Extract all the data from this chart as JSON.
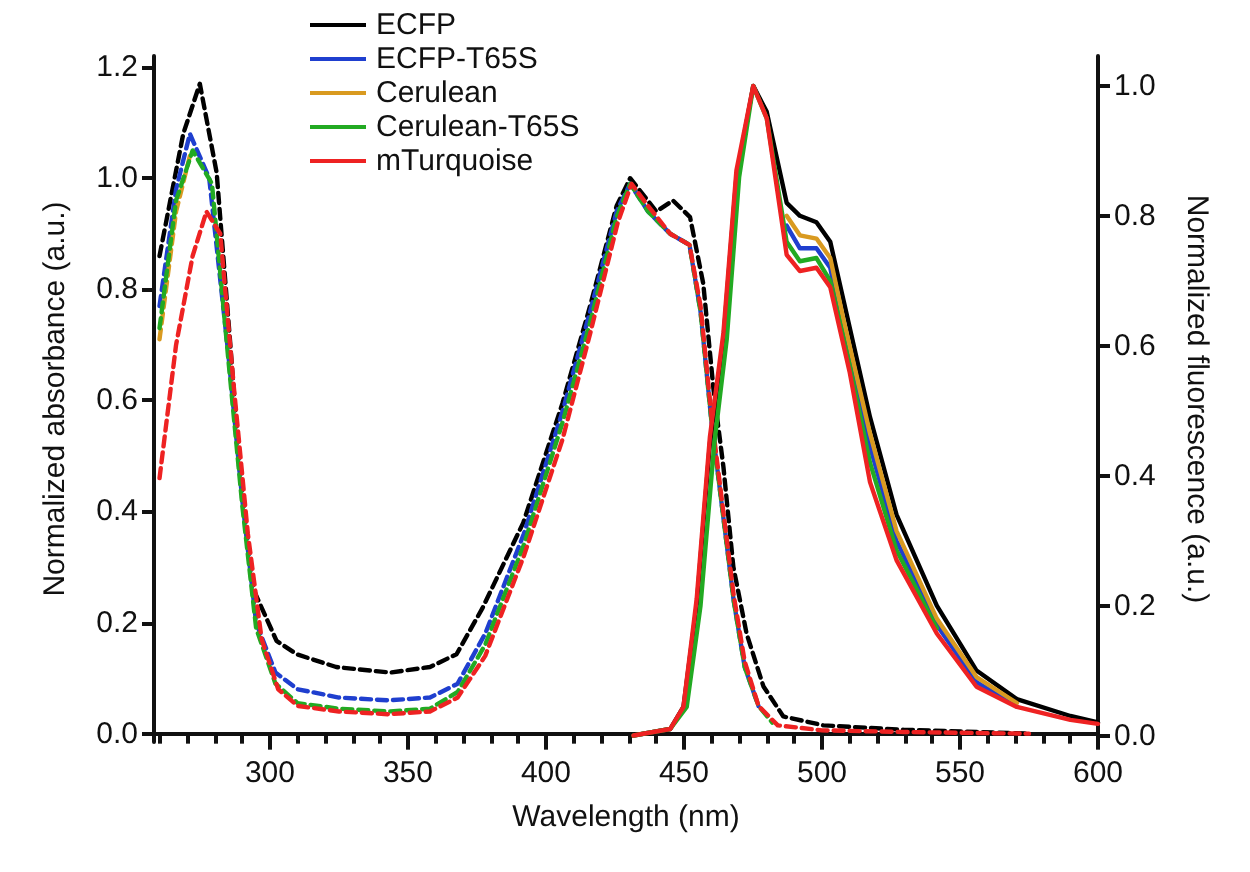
{
  "chart_data": {
    "type": "line",
    "xlabel": "Wavelength (nm)",
    "ylabel": "Normalized absorbance (a.u.)",
    "y2label": "Normalized fluorescence (a.u.)",
    "legend": "top left",
    "marker": "none",
    "grid": false,
    "xlim": [
      258,
      600
    ],
    "xticks": [
      300,
      350,
      400,
      450,
      500,
      550,
      600
    ],
    "ylim": [
      -0.015,
      1.22
    ],
    "yticks": [
      {
        "value": 0,
        "label": "0.0"
      },
      {
        "value": 0.2,
        "label": "0.2"
      },
      {
        "value": 0.4,
        "label": "0.4"
      },
      {
        "value": 0.6,
        "label": "0.6"
      },
      {
        "value": 0.8,
        "label": "0.8"
      },
      {
        "value": 1,
        "label": "1.0"
      },
      {
        "value": 1.2,
        "label": "1.2"
      }
    ],
    "y2lim": [
      -0.01,
      1.046
    ],
    "y2ticks": [
      {
        "value": 0,
        "label": "0.0"
      },
      {
        "value": 0.2,
        "label": "0.2"
      },
      {
        "value": 0.4,
        "label": "0.4"
      },
      {
        "value": 0.6,
        "label": "0.6"
      },
      {
        "value": 0.8,
        "label": "0.8"
      },
      {
        "value": 1,
        "label": "1.0"
      }
    ],
    "series": [
      {
        "color": "#000000",
        "axis": "y",
        "line_style": "dashed",
        "x": [
          260,
          268.6,
          274.6,
          280.7,
          285.5,
          289,
          294,
          302.4,
          309.7,
          324,
          343.5,
          358,
          367.6,
          377,
          391.8,
          406,
          416,
          425.6,
          430.5,
          440,
          446,
          452.2,
          457,
          460.7,
          464.3,
          467.9,
          472.7,
          478.8,
          486,
          500.5,
          529.5,
          575.4
        ],
        "values": [
          0.86,
          1.08,
          1.17,
          1.01,
          0.71,
          0.48,
          0.26,
          0.167,
          0.143,
          0.12,
          0.11,
          0.12,
          0.143,
          0.226,
          0.38,
          0.595,
          0.77,
          0.95,
          1.0,
          0.94,
          0.96,
          0.93,
          0.81,
          0.62,
          0.48,
          0.3,
          0.18,
          0.085,
          0.031,
          0.015,
          0.007,
          0.0
        ]
      },
      {
        "color": "#1f3fcf",
        "axis": "y",
        "line_style": "dashed",
        "x": [
          260,
          266,
          271,
          278,
          285,
          290,
          295,
          302,
          310,
          325,
          343,
          358,
          368,
          378,
          392,
          406,
          416,
          425.6,
          430.5,
          437,
          445,
          452,
          456,
          460,
          464,
          468,
          472,
          477
        ],
        "values": [
          0.77,
          0.98,
          1.08,
          1.0,
          0.68,
          0.42,
          0.2,
          0.11,
          0.08,
          0.065,
          0.06,
          0.065,
          0.09,
          0.18,
          0.36,
          0.58,
          0.76,
          0.94,
          0.99,
          0.94,
          0.9,
          0.88,
          0.76,
          0.56,
          0.4,
          0.24,
          0.12,
          0.05
        ]
      },
      {
        "color": "#d99a20",
        "axis": "y",
        "line_style": "dashed",
        "x": [
          260,
          266,
          271
        ],
        "values": [
          0.71,
          0.94,
          1.04
        ]
      },
      {
        "color": "#22aa22",
        "axis": "y",
        "line_style": "dashed",
        "x": [
          260,
          266,
          272,
          279,
          285,
          290,
          295,
          302,
          310,
          325,
          343,
          358,
          368,
          378,
          392,
          406,
          416,
          425.6,
          430.5,
          437,
          445,
          452,
          456,
          460,
          464,
          468,
          472,
          477,
          482
        ],
        "values": [
          0.73,
          0.96,
          1.05,
          0.99,
          0.67,
          0.41,
          0.19,
          0.09,
          0.055,
          0.045,
          0.04,
          0.045,
          0.075,
          0.16,
          0.34,
          0.56,
          0.74,
          0.93,
          0.99,
          0.94,
          0.9,
          0.88,
          0.76,
          0.56,
          0.4,
          0.24,
          0.12,
          0.05,
          0.02
        ]
      },
      {
        "color": "#ee2222",
        "axis": "y",
        "line_style": "dashed",
        "x": [
          260,
          266,
          272,
          277,
          282,
          287,
          292,
          297,
          303,
          310,
          325,
          343,
          358,
          368,
          378,
          392,
          406,
          416,
          426,
          431,
          437,
          445,
          452,
          456,
          460,
          464,
          468,
          472,
          477,
          484,
          500,
          530,
          575
        ],
        "values": [
          0.46,
          0.7,
          0.86,
          0.94,
          0.9,
          0.62,
          0.36,
          0.17,
          0.08,
          0.05,
          0.04,
          0.035,
          0.04,
          0.065,
          0.14,
          0.32,
          0.53,
          0.72,
          0.92,
          0.99,
          0.95,
          0.9,
          0.88,
          0.77,
          0.57,
          0.41,
          0.25,
          0.13,
          0.05,
          0.015,
          0.006,
          0.003,
          0.0
        ]
      },
      {
        "name": "ECFP",
        "color": "#000000",
        "axis": "y2",
        "line_style": "solid",
        "x": [
          431.7,
          445,
          449.8,
          454.6,
          459.4,
          464.3,
          469,
          475.1,
          480,
          487.2,
          492,
          498,
          503,
          507.8,
          517.4,
          527,
          541.6,
          556,
          570.6,
          590,
          600
        ],
        "values": [
          0,
          0.01,
          0.044,
          0.2,
          0.45,
          0.61,
          0.86,
          1.0,
          0.96,
          0.82,
          0.8,
          0.79,
          0.76,
          0.67,
          0.49,
          0.34,
          0.2,
          0.1,
          0.056,
          0.03,
          0.02
        ]
      },
      {
        "name": "ECFP-T65S",
        "color": "#1f3fcf",
        "axis": "y2",
        "line_style": "solid",
        "x": [
          487.2,
          492,
          498,
          503,
          507.8,
          517.4,
          527,
          541.6,
          556,
          570.6
        ],
        "values": [
          0.785,
          0.75,
          0.75,
          0.72,
          0.62,
          0.445,
          0.3,
          0.17,
          0.082,
          0.045
        ]
      },
      {
        "name": "Cerulean",
        "color": "#d99a20",
        "axis": "y2",
        "line_style": "solid",
        "x": [
          487.2,
          492,
          498,
          503,
          507.8,
          517.4,
          527,
          541.6,
          556,
          570.6
        ],
        "values": [
          0.8,
          0.77,
          0.765,
          0.735,
          0.64,
          0.465,
          0.315,
          0.18,
          0.09,
          0.05
        ]
      },
      {
        "name": "Cerulean-T65S",
        "color": "#22aa22",
        "axis": "y2",
        "line_style": "solid",
        "x": [
          431.7,
          445,
          451,
          456,
          461,
          465.5,
          470,
          475.1,
          480,
          487.2,
          492,
          498,
          503,
          510,
          517.4,
          527,
          541.6
        ],
        "values": [
          0,
          0.01,
          0.044,
          0.2,
          0.45,
          0.61,
          0.86,
          1.0,
          0.95,
          0.76,
          0.73,
          0.735,
          0.7,
          0.57,
          0.42,
          0.285,
          0.165
        ]
      },
      {
        "name": "mTurquoise",
        "color": "#ee2222",
        "axis": "y2",
        "line_style": "solid",
        "x": [
          431.7,
          445,
          449.8,
          454.6,
          459.4,
          464.3,
          469,
          475.1,
          480,
          487.2,
          492,
          498,
          503,
          510,
          517.4,
          527,
          541.6,
          556,
          570.6,
          590,
          600
        ],
        "values": [
          0,
          0.01,
          0.044,
          0.21,
          0.46,
          0.62,
          0.87,
          1.0,
          0.95,
          0.74,
          0.715,
          0.72,
          0.69,
          0.56,
          0.39,
          0.27,
          0.157,
          0.075,
          0.044,
          0.024,
          0.018
        ]
      }
    ]
  }
}
